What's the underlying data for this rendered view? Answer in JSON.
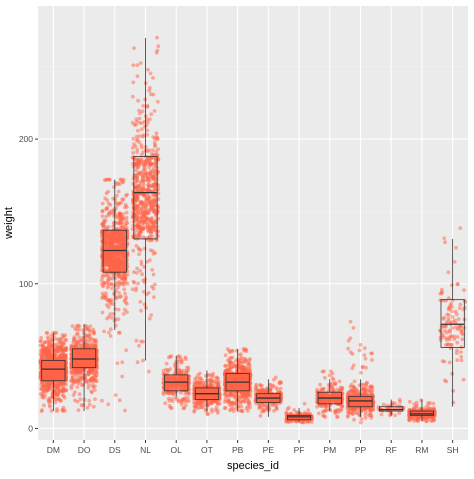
{
  "chart_data": {
    "type": "box+jitter",
    "title": "",
    "xlabel": "species_id",
    "ylabel": "weight",
    "categories": [
      "DM",
      "DO",
      "DS",
      "NL",
      "OL",
      "OT",
      "PB",
      "PE",
      "PF",
      "PM",
      "PP",
      "RF",
      "RM",
      "SH"
    ],
    "y_ticks": [
      0,
      100,
      200
    ],
    "ylim": [
      -8,
      292
    ],
    "grid": true,
    "legend": "none",
    "box": [
      {
        "category": "DM",
        "min": 12,
        "q1": 33,
        "median": 41,
        "q3": 47,
        "max": 66,
        "spread": [
          12,
          66
        ]
      },
      {
        "category": "DO",
        "min": 12,
        "q1": 42,
        "median": 48,
        "q3": 55,
        "max": 72,
        "spread": [
          12,
          72
        ]
      },
      {
        "category": "DS",
        "min": 68,
        "q1": 108,
        "median": 123,
        "q3": 137,
        "max": 172,
        "spread": [
          12,
          172
        ]
      },
      {
        "category": "NL",
        "min": 47,
        "q1": 131,
        "median": 163,
        "q3": 188,
        "max": 270,
        "spread": [
          30,
          280
        ]
      },
      {
        "category": "OL",
        "min": 22,
        "q1": 26,
        "median": 32,
        "q3": 37,
        "max": 50,
        "spread": [
          14,
          50
        ]
      },
      {
        "category": "OT",
        "min": 12,
        "q1": 20,
        "median": 24,
        "q3": 28,
        "max": 40,
        "spread": [
          10,
          40
        ]
      },
      {
        "category": "PB",
        "min": 12,
        "q1": 26,
        "median": 32,
        "q3": 38,
        "max": 55,
        "spread": [
          12,
          55
        ]
      },
      {
        "category": "PE",
        "min": 8,
        "q1": 18,
        "median": 21,
        "q3": 24,
        "max": 34,
        "spread": [
          8,
          40
        ]
      },
      {
        "category": "PF",
        "min": 4,
        "q1": 6,
        "median": 8,
        "q3": 9,
        "max": 14,
        "spread": [
          4,
          18
        ]
      },
      {
        "category": "PM",
        "min": 12,
        "q1": 17,
        "median": 21,
        "q3": 25,
        "max": 34,
        "spread": [
          8,
          40
        ]
      },
      {
        "category": "PP",
        "min": 8,
        "q1": 15,
        "median": 19,
        "q3": 22,
        "max": 34,
        "spread": [
          4,
          74
        ]
      },
      {
        "category": "RF",
        "min": 9,
        "q1": 12,
        "median": 13,
        "q3": 15,
        "max": 20,
        "spread": [
          9,
          20
        ]
      },
      {
        "category": "RM",
        "min": 5,
        "q1": 9,
        "median": 10,
        "q3": 12,
        "max": 20,
        "spread": [
          5,
          20
        ]
      },
      {
        "category": "SH",
        "min": 15,
        "q1": 56,
        "median": 72,
        "q3": 89,
        "max": 131,
        "spread": [
          15,
          140
        ]
      }
    ],
    "colors": {
      "panel": "#ebebeb",
      "grid_major": "#ffffff",
      "grid_minor": "#f4f4f4",
      "points": "#ff6347",
      "box": "#333333",
      "axis_text": "#4d4d4d",
      "axis_title": "#000000",
      "background": "#ffffff"
    }
  }
}
